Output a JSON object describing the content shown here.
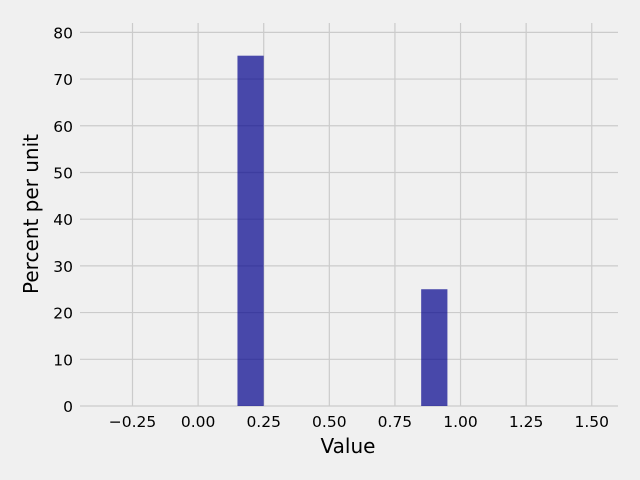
{
  "chart_data": {
    "type": "bar",
    "subtype": "histogram",
    "xlabel": "Value",
    "ylabel": "Percent per unit",
    "xlim": [
      -0.45,
      1.6
    ],
    "ylim": [
      0,
      82
    ],
    "x_ticks": [
      -0.25,
      0.0,
      0.25,
      0.5,
      0.75,
      1.0,
      1.25,
      1.5
    ],
    "x_tick_labels": [
      "−0.25",
      "0.00",
      "0.25",
      "0.50",
      "0.75",
      "1.00",
      "1.25",
      "1.50"
    ],
    "y_ticks": [
      0,
      10,
      20,
      30,
      40,
      50,
      60,
      70,
      80
    ],
    "y_tick_labels": [
      "0",
      "10",
      "20",
      "30",
      "40",
      "50",
      "60",
      "70",
      "80"
    ],
    "bins": [
      {
        "start": 0.15,
        "end": 0.25,
        "value": 75
      },
      {
        "start": 0.85,
        "end": 0.95,
        "value": 25
      }
    ],
    "grid": true,
    "bar_color": "#00008b"
  }
}
